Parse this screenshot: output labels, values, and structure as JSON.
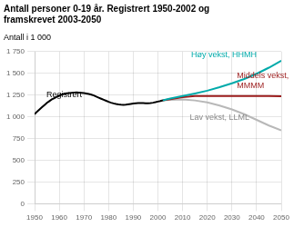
{
  "chart_data": {
    "type": "line",
    "title": [
      "Antall personer 0-19 år. Registrert 1950-2002 og",
      "framskrevet 2003-2050"
    ],
    "ylabel": "Antall i 1 000",
    "xlim": [
      1950,
      2050
    ],
    "ylim": [
      0,
      1750
    ],
    "xticks": [
      1950,
      1960,
      1970,
      1980,
      1990,
      2000,
      2010,
      2020,
      2030,
      2040,
      2050
    ],
    "yticks": [
      0,
      250,
      500,
      750,
      {
        "value": 1000,
        "label": "1 000"
      },
      {
        "value": 1250,
        "label": "1 250"
      },
      {
        "value": 1500,
        "label": "1 500"
      },
      {
        "value": 1750,
        "label": "1 750"
      }
    ],
    "grid": true,
    "series": [
      {
        "color": "#000000",
        "x": [
          1950,
          1951,
          1952,
          1953,
          1954,
          1955,
          1956,
          1957,
          1958,
          1959,
          1960,
          1961,
          1962,
          1963,
          1964,
          1965,
          1966,
          1967,
          1968,
          1969,
          1970,
          1971,
          1972,
          1973,
          1974,
          1975,
          1976,
          1977,
          1978,
          1979,
          1980,
          1981,
          1982,
          1983,
          1984,
          1985,
          1986,
          1987,
          1989,
          1990,
          1991,
          1992,
          1993,
          1994,
          1995,
          1996,
          1997,
          1998,
          1999,
          2000,
          2001,
          2002
        ],
        "values": [
          1030,
          1060,
          1085,
          1110,
          1135,
          1160,
          1180,
          1200,
          1215,
          1230,
          1245,
          1255,
          1265,
          1270,
          1272,
          1275,
          1278,
          1280,
          1278,
          1275,
          1272,
          1268,
          1262,
          1255,
          1245,
          1232,
          1220,
          1208,
          1196,
          1184,
          1172,
          1162,
          1154,
          1148,
          1143,
          1140,
          1138,
          1140,
          1148,
          1152,
          1155,
          1157,
          1158,
          1158,
          1156,
          1155,
          1157,
          1162,
          1168,
          1175,
          1182,
          1190
        ]
      },
      {
        "color": "#00aaaa",
        "x": [
          2002,
          2005,
          2010,
          2015,
          2020,
          2025,
          2030,
          2035,
          2040,
          2045,
          2050
        ],
        "values": [
          1190,
          1210,
          1238,
          1268,
          1300,
          1340,
          1385,
          1435,
          1495,
          1565,
          1645
        ]
      },
      {
        "color": "#9b1c1c",
        "x": [
          2002,
          2005,
          2010,
          2015,
          2020,
          2025,
          2030,
          2035,
          2040,
          2045,
          2050
        ],
        "values": [
          1190,
          1202,
          1225,
          1238,
          1240,
          1238,
          1238,
          1240,
          1240,
          1238,
          1235
        ]
      },
      {
        "color": "#b8b8b8",
        "x": [
          2002,
          2005,
          2010,
          2015,
          2020,
          2025,
          2030,
          2035,
          2040,
          2045,
          2050
        ],
        "values": [
          1190,
          1195,
          1200,
          1188,
          1165,
          1130,
          1085,
          1030,
          965,
          900,
          845
        ]
      }
    ],
    "annotations": [
      {
        "text": "Registrert",
        "x": 1962,
        "y": 1205,
        "color": "#000000"
      },
      {
        "text": "Høy vekst, HHMH",
        "x": 2040,
        "y": 1668,
        "color": "#00aaaa"
      },
      {
        "text": "Middels vekst,\nMMMM",
        "x": 2032,
        "y": 1310,
        "color": "#9b1c1c"
      },
      {
        "text": "Lav vekst, LLML",
        "x": 2025,
        "y": 1040,
        "color": "#888888"
      }
    ]
  }
}
